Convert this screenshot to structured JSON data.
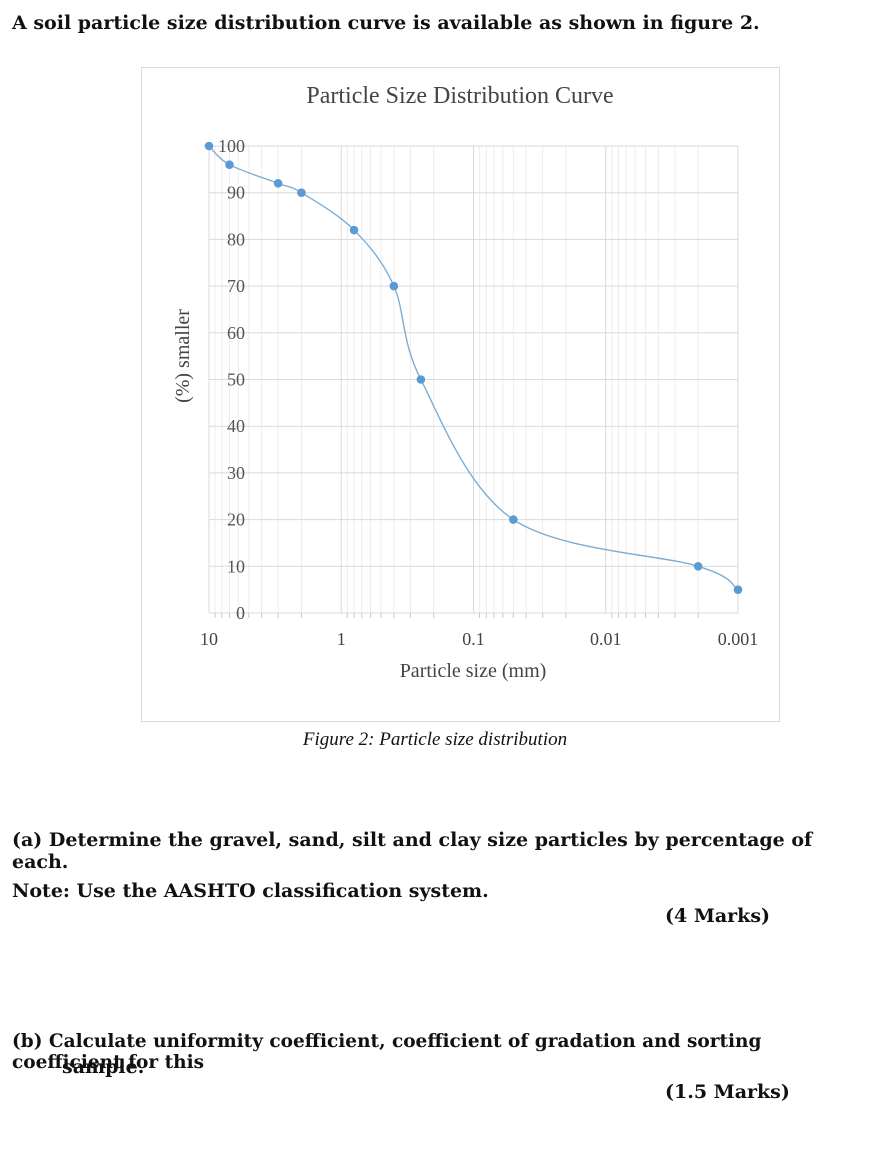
{
  "intro": "A soil particle size distribution curve is available as shown in figure 2.",
  "chart_data": {
    "type": "line",
    "title": "Particle Size Distribution Curve",
    "xlabel": "Particle size (mm)",
    "ylabel": "(%) smaller",
    "x_scale": "log",
    "x_reversed": true,
    "xlim": [
      10,
      0.001
    ],
    "ylim": [
      0,
      100
    ],
    "x_ticks": [
      10,
      1,
      0.1,
      0.01,
      0.001
    ],
    "x_tick_labels": [
      "10",
      "1",
      "0.1",
      "0.01",
      "0.001"
    ],
    "y_ticks": [
      0,
      10,
      20,
      30,
      40,
      50,
      60,
      70,
      80,
      90,
      100
    ],
    "grid": true,
    "smooth": true,
    "marker_color": "#5b9bd5",
    "line_color": "#7aaed6",
    "series": [
      {
        "x": [
          10,
          7,
          3,
          2,
          0.8,
          0.4,
          0.25,
          0.05,
          0.002,
          0.001
        ],
        "y": [
          100,
          96,
          92,
          90,
          82,
          70,
          50,
          20,
          10,
          5
        ]
      }
    ]
  },
  "figure_caption": "Figure 2: Particle size distribution",
  "question_a": "(a) Determine the gravel, sand, silt and clay size particles by percentage of each.",
  "note": "Note: Use the AASHTO classification system.",
  "marks_a": "(4 Marks)",
  "question_b_line1": "(b) Calculate uniformity coefficient, coefficient of gradation and sorting coefficient for this",
  "question_b_line2": "sample.",
  "marks_b": "(1.5 Marks)"
}
